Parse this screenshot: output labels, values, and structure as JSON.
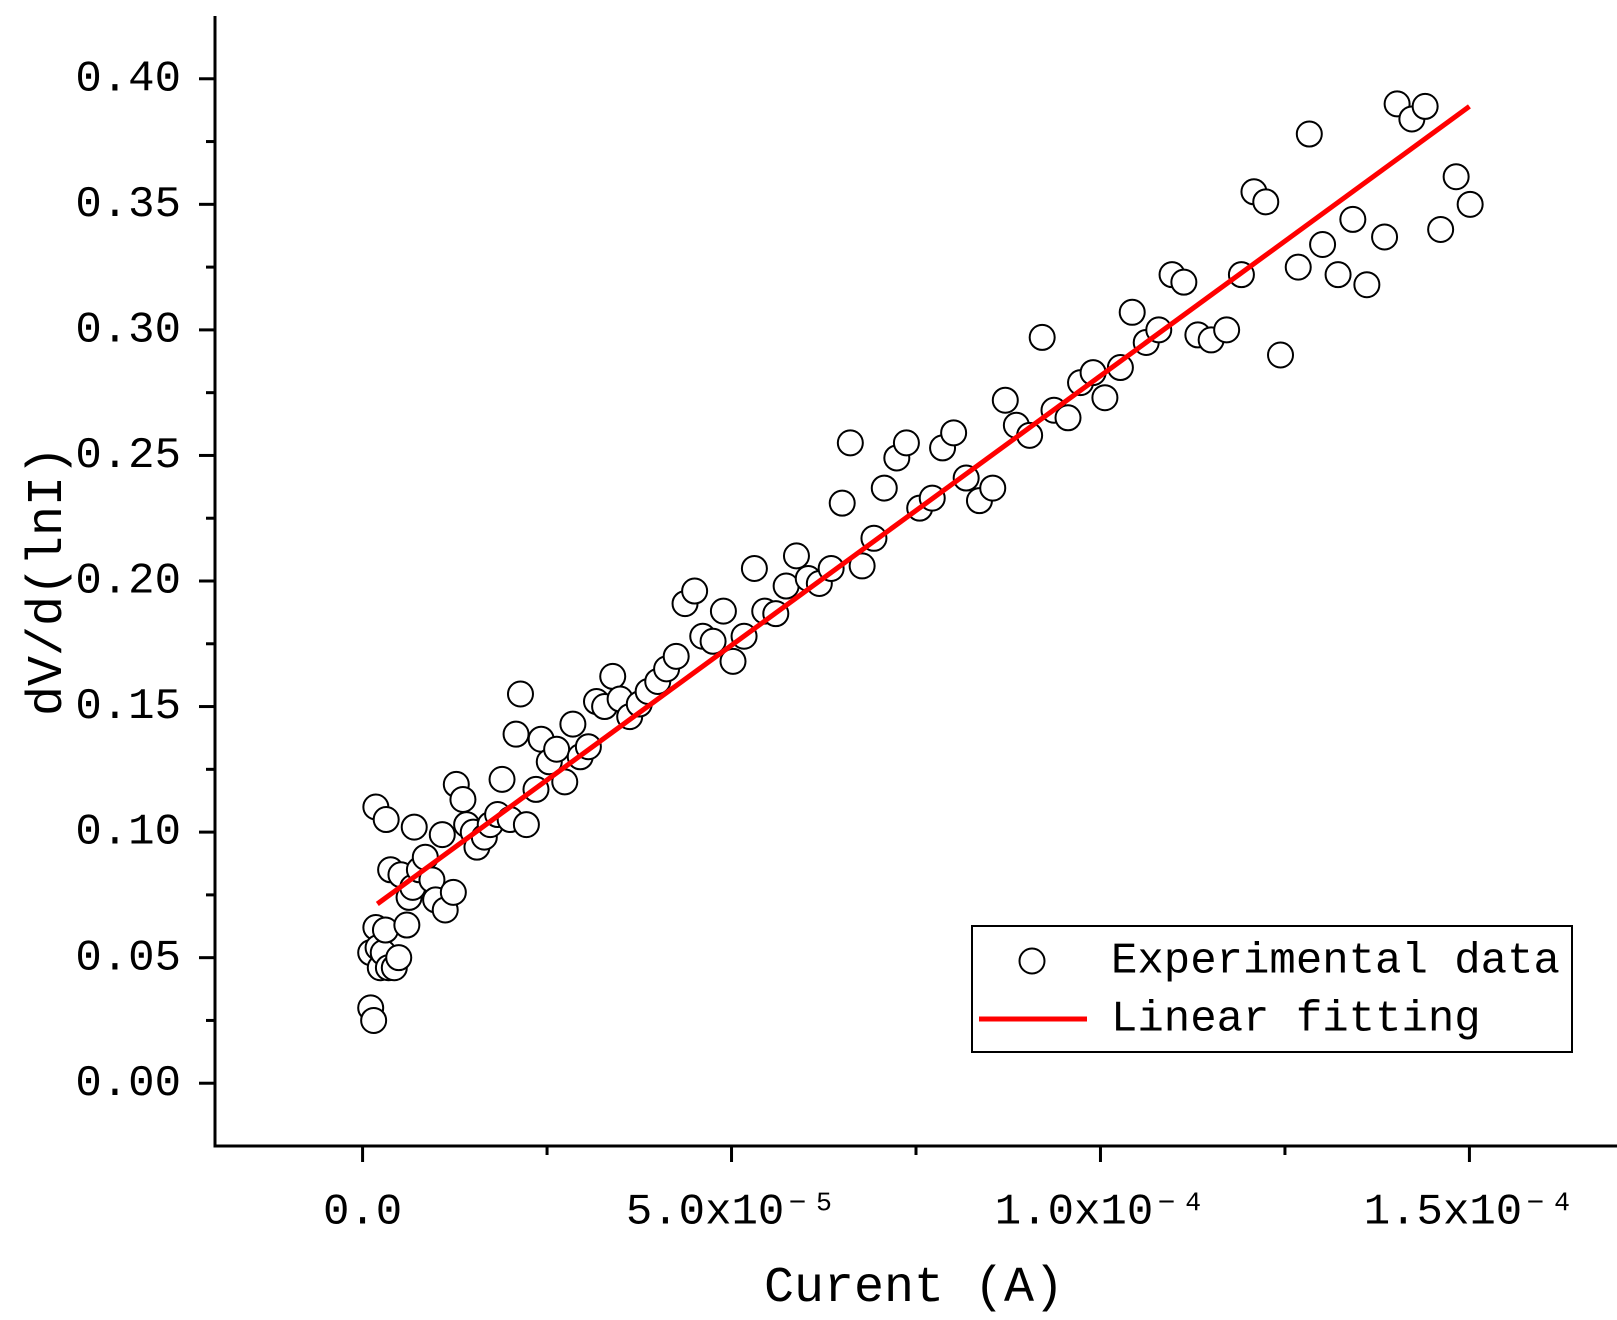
{
  "chart_data": {
    "type": "scatter",
    "x_label": "Curent (A)",
    "y_label": "dV/d(lnI)",
    "xlim": [
      -2e-05,
      0.00017
    ],
    "ylim": [
      -0.025,
      0.425
    ],
    "xticks": [
      {
        "value": 0,
        "label": "0.0"
      },
      {
        "value": 5e-05,
        "label": "5.0x10⁻⁵"
      },
      {
        "value": 0.0001,
        "label": "1.0x10⁻⁴"
      },
      {
        "value": 0.00015,
        "label": "1.5x10⁻⁴"
      }
    ],
    "yticks": [
      {
        "value": 0,
        "label": "0.00"
      },
      0.05,
      {
        "value": 0.1,
        "label": "0.10"
      },
      0.15,
      {
        "value": 0.2,
        "label": "0.20"
      },
      0.25,
      {
        "value": 0.3,
        "label": "0.30"
      },
      0.35,
      {
        "value": 0.4,
        "label": "0.40"
      }
    ],
    "legend": "lower right",
    "series": [
      {
        "name": "Experimental data",
        "type": "scatter",
        "color": "#000000",
        "x": [
          1.1e-06,
          1.5e-06,
          1.1e-06,
          1.8e-06,
          2.1e-06,
          2.4e-06,
          2.8e-06,
          3.1e-06,
          3.5e-06,
          4.3e-06,
          4.9e-06,
          1.8e-06,
          3.2e-06,
          3.8e-06,
          5.2e-06,
          6e-06,
          6.3e-06,
          6.8e-06,
          7e-06,
          7.7e-06,
          8.5e-06,
          9.4e-06,
          9.9e-06,
          1.08e-05,
          1.12e-05,
          1.23e-05,
          1.27e-05,
          1.36e-05,
          1.41e-05,
          1.5e-05,
          1.55e-05,
          1.65e-05,
          1.73e-05,
          1.83e-05,
          1.89e-05,
          2e-05,
          2.08e-05,
          2.14e-05,
          2.22e-05,
          2.35e-05,
          2.42e-05,
          2.53e-05,
          2.63e-05,
          2.74e-05,
          2.85e-05,
          2.95e-05,
          3.06e-05,
          3.17e-05,
          3.28e-05,
          3.39e-05,
          3.49e-05,
          3.62e-05,
          3.75e-05,
          3.87e-05,
          4e-05,
          4.12e-05,
          4.25e-05,
          4.37e-05,
          4.5e-05,
          4.61e-05,
          4.75e-05,
          4.89e-05,
          5.02e-05,
          5.17e-05,
          5.31e-05,
          5.45e-05,
          5.6e-05,
          5.74e-05,
          5.88e-05,
          6.04e-05,
          6.19e-05,
          6.35e-05,
          6.5e-05,
          6.61e-05,
          6.77e-05,
          6.93e-05,
          7.07e-05,
          7.24e-05,
          7.37e-05,
          7.55e-05,
          7.72e-05,
          7.86e-05,
          8.01e-05,
          8.18e-05,
          8.36e-05,
          8.54e-05,
          8.71e-05,
          8.86e-05,
          9.04e-05,
          9.21e-05,
          9.37e-05,
          9.56e-05,
          9.73e-05,
          9.9e-05,
          0.0001006,
          0.0001027,
          0.0001043,
          0.0001062,
          0.0001079,
          0.0001097,
          0.0001113,
          0.0001132,
          0.000115,
          0.0001171,
          0.0001191,
          0.0001208,
          0.0001224,
          0.0001244,
          0.0001268,
          0.0001283,
          0.0001301,
          0.0001322,
          0.0001342,
          0.0001361,
          0.0001385,
          0.0001402,
          0.0001422,
          0.000144,
          0.0001461,
          0.0001482,
          0.0001501
        ],
        "values": [
          0.03,
          0.025,
          0.052,
          0.062,
          0.054,
          0.046,
          0.052,
          0.061,
          0.046,
          0.046,
          0.05,
          0.11,
          0.105,
          0.085,
          0.083,
          0.063,
          0.074,
          0.078,
          0.102,
          0.085,
          0.09,
          0.081,
          0.073,
          0.099,
          0.069,
          0.076,
          0.119,
          0.113,
          0.103,
          0.1,
          0.094,
          0.098,
          0.103,
          0.107,
          0.121,
          0.105,
          0.139,
          0.155,
          0.103,
          0.117,
          0.137,
          0.128,
          0.133,
          0.12,
          0.143,
          0.13,
          0.134,
          0.152,
          0.15,
          0.162,
          0.153,
          0.146,
          0.151,
          0.156,
          0.16,
          0.165,
          0.17,
          0.191,
          0.196,
          0.178,
          0.176,
          0.188,
          0.168,
          0.178,
          0.205,
          0.188,
          0.187,
          0.198,
          0.21,
          0.201,
          0.199,
          0.205,
          0.231,
          0.255,
          0.206,
          0.217,
          0.237,
          0.249,
          0.255,
          0.229,
          0.233,
          0.253,
          0.259,
          0.241,
          0.232,
          0.237,
          0.272,
          0.262,
          0.258,
          0.297,
          0.268,
          0.265,
          0.279,
          0.283,
          0.273,
          0.285,
          0.307,
          0.295,
          0.3,
          0.322,
          0.319,
          0.298,
          0.296,
          0.3,
          0.322,
          0.355,
          0.351,
          0.29,
          0.325,
          0.378,
          0.334,
          0.322,
          0.344,
          0.318,
          0.337,
          0.39,
          0.384,
          0.389,
          0.34,
          0.361,
          0.35
        ]
      },
      {
        "name": "Linear fitting",
        "type": "line",
        "color": "#ff0000",
        "x": [
          2e-06,
          0.00015
        ],
        "values": [
          0.0714,
          0.389
        ]
      }
    ]
  }
}
